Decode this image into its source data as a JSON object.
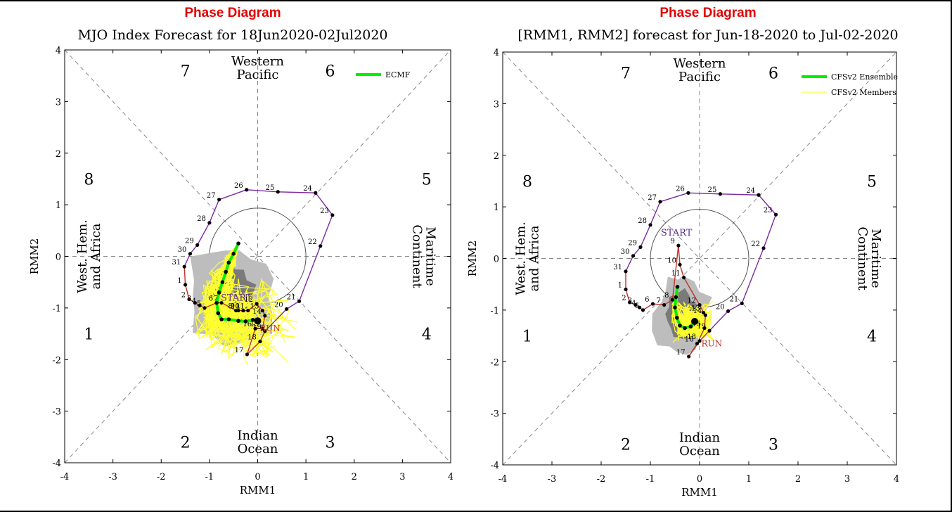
{
  "panels": [
    {
      "header": "Phase Diagram",
      "title": "MJO Index Forecast for 18Jun2020-02Jul2020",
      "xlabel": "RMM1",
      "ylabel": "RMM2",
      "region_labels": {
        "top": [
          "Western",
          "Pacific"
        ],
        "bottom": [
          "Indian",
          "Ocean"
        ],
        "left": [
          "West. Hem.",
          "and Africa"
        ],
        "right": [
          "Maritime",
          "Continent"
        ]
      },
      "phase_numbers": [
        "1",
        "2",
        "3",
        "4",
        "5",
        "6",
        "7",
        "8"
      ],
      "legend": [
        {
          "label": "ECMF",
          "color": "#00ee00"
        }
      ],
      "start_label": "START"
    },
    {
      "header": "Phase Diagram",
      "title": "[RMM1, RMM2] forecast for Jun-18-2020 to Jul-02-2020",
      "xlabel": "RMM1",
      "ylabel": "RMM2",
      "region_labels": {
        "top": [
          "Western",
          "Pacific"
        ],
        "bottom": [
          "Indian",
          "Ocean"
        ],
        "left": [
          "West. Hem.",
          "and Africa"
        ],
        "right": [
          "Maritime",
          "Continent"
        ]
      },
      "phase_numbers": [
        "1",
        "2",
        "3",
        "4",
        "5",
        "6",
        "7",
        "8"
      ],
      "legend": [
        {
          "label": "CFSv2 Ensemble",
          "color": "#00ee00"
        },
        {
          "label": "CFSv2 Members",
          "color": "#ffff40"
        }
      ],
      "start_label": "START"
    }
  ],
  "chart_data": [
    {
      "type": "scatter",
      "title": "MJO Index Forecast for 18Jun2020-02Jul2020",
      "xlabel": "RMM1",
      "ylabel": "RMM2",
      "xlim": [
        -4,
        4
      ],
      "ylim": [
        -4,
        4
      ],
      "xticks": [
        "-4",
        "-3",
        "-2",
        "-1",
        "0",
        "1",
        "2",
        "3",
        "4"
      ],
      "yticks": [
        "-4",
        "-3",
        "-2",
        "-1",
        "0",
        "1",
        "2",
        "3",
        "4"
      ],
      "colors": {
        "observed_path": "#7b2aa0",
        "observed_end": "#c0302a",
        "ensemble_mean": "#00ee00",
        "members": "#ffff30",
        "spread_outer": "#bdbdbd",
        "spread_inner": "#7a7a7a"
      },
      "series": [
        {
          "name": "Observed",
          "points": [
            {
              "label": "1",
              "x": -1.5,
              "y": -0.55
            },
            {
              "label": "2",
              "x": -1.42,
              "y": -0.83
            },
            {
              "label": "3",
              "x": -1.3,
              "y": -0.9
            },
            {
              "label": "4",
              "x": -1.2,
              "y": -0.95
            },
            {
              "label": "5",
              "x": -1.1,
              "y": -1.0
            },
            {
              "label": "6",
              "x": -0.85,
              "y": -0.9
            },
            {
              "label": "7",
              "x": -0.75,
              "y": -0.9
            },
            {
              "label": "8",
              "x": -0.45,
              "y": -1.05
            },
            {
              "label": "9",
              "x": -0.4,
              "y": -1.05
            },
            {
              "label": "10",
              "x": -0.3,
              "y": -1.05
            },
            {
              "label": "11",
              "x": -0.2,
              "y": -1.05
            },
            {
              "label": "12",
              "x": -0.02,
              "y": -0.92
            },
            {
              "label": "13",
              "x": 0.1,
              "y": -1.05
            },
            {
              "label": "14",
              "x": 0.15,
              "y": -1.15
            },
            {
              "label": "15",
              "x": 0.1,
              "y": -1.4
            },
            {
              "label": "16",
              "x": -0.05,
              "y": -1.4
            },
            {
              "label": "17",
              "x": -0.22,
              "y": -1.9
            },
            {
              "label": "18",
              "x": 0.05,
              "y": -1.65
            },
            {
              "label": "19",
              "x": 0.15,
              "y": -1.45
            },
            {
              "label": "20",
              "x": 0.6,
              "y": -1.02
            },
            {
              "label": "21",
              "x": 0.86,
              "y": -0.87
            },
            {
              "label": "22",
              "x": 1.3,
              "y": 0.2
            },
            {
              "label": "23",
              "x": 1.55,
              "y": 0.8
            },
            {
              "label": "24",
              "x": 1.2,
              "y": 1.23
            },
            {
              "label": "25",
              "x": 0.42,
              "y": 1.25
            },
            {
              "label": "26",
              "x": -0.23,
              "y": 1.29
            },
            {
              "label": "27",
              "x": -0.8,
              "y": 1.1
            },
            {
              "label": "28",
              "x": -1.0,
              "y": 0.65
            },
            {
              "label": "29",
              "x": -1.25,
              "y": 0.22
            },
            {
              "label": "30",
              "x": -1.4,
              "y": 0.05
            },
            {
              "label": "31",
              "x": -1.52,
              "y": -0.2
            }
          ]
        },
        {
          "name": "ECMF",
          "points": [
            {
              "x": -0.4,
              "y": 0.25
            },
            {
              "x": -0.5,
              "y": 0.05
            },
            {
              "x": -0.6,
              "y": -0.12
            },
            {
              "x": -0.66,
              "y": -0.3
            },
            {
              "x": -0.73,
              "y": -0.5
            },
            {
              "x": -0.8,
              "y": -0.7
            },
            {
              "x": -0.85,
              "y": -0.9
            },
            {
              "x": -0.82,
              "y": -1.1
            },
            {
              "x": -0.75,
              "y": -1.22
            },
            {
              "x": -0.6,
              "y": -1.22
            },
            {
              "x": -0.4,
              "y": -1.25
            },
            {
              "x": -0.25,
              "y": -1.26
            },
            {
              "x": -0.1,
              "y": -1.23
            },
            {
              "x": 0.0,
              "y": -1.25
            }
          ]
        }
      ],
      "annotations": [
        "START",
        "RUN"
      ]
    },
    {
      "type": "scatter",
      "title": "[RMM1, RMM2] forecast for Jun-18-2020 to Jul-02-2020",
      "xlabel": "RMM1",
      "ylabel": "RMM2",
      "xlim": [
        -4,
        4
      ],
      "ylim": [
        -4,
        4
      ],
      "xticks": [
        "-4",
        "-3",
        "-2",
        "-1",
        "0",
        "1",
        "2",
        "3",
        "4"
      ],
      "yticks": [
        "-4",
        "-3",
        "-2",
        "-1",
        "0",
        "1",
        "2",
        "3",
        "4"
      ],
      "colors": {
        "observed_path": "#7b2aa0",
        "observed_end": "#c0302a",
        "ensemble_mean": "#00ee00",
        "members": "#ffff30",
        "spread_outer": "#bdbdbd",
        "spread_inner": "#7a7a7a"
      },
      "series": [
        {
          "name": "Observed",
          "points": [
            {
              "label": "1",
              "x": -1.5,
              "y": -0.6
            },
            {
              "label": "2",
              "x": -1.42,
              "y": -0.85
            },
            {
              "label": "3",
              "x": -1.3,
              "y": -0.9
            },
            {
              "label": "4",
              "x": -1.22,
              "y": -0.95
            },
            {
              "label": "5",
              "x": -1.15,
              "y": -1.0
            },
            {
              "label": "6",
              "x": -0.95,
              "y": -0.88
            },
            {
              "label": "7",
              "x": -0.72,
              "y": -0.9
            },
            {
              "label": "8",
              "x": -0.55,
              "y": -0.8
            },
            {
              "label": "9",
              "x": -0.43,
              "y": 0.25
            },
            {
              "label": "10",
              "x": -0.4,
              "y": -0.12
            },
            {
              "label": "11",
              "x": -0.32,
              "y": -0.37
            },
            {
              "label": "12",
              "x": 0.0,
              "y": -0.9
            },
            {
              "label": "13",
              "x": 0.08,
              "y": -1.05
            },
            {
              "label": "14",
              "x": 0.12,
              "y": -1.1
            },
            {
              "label": "15",
              "x": 0.1,
              "y": -1.35
            },
            {
              "label": "16",
              "x": -0.05,
              "y": -1.65
            },
            {
              "label": "17",
              "x": -0.22,
              "y": -1.9
            },
            {
              "label": "18",
              "x": 0.0,
              "y": -1.6
            },
            {
              "label": "19",
              "x": 0.2,
              "y": -1.4
            },
            {
              "label": "20",
              "x": 0.58,
              "y": -1.02
            },
            {
              "label": "21",
              "x": 0.86,
              "y": -0.87
            },
            {
              "label": "22",
              "x": 1.3,
              "y": 0.2
            },
            {
              "label": "23",
              "x": 1.55,
              "y": 0.85
            },
            {
              "label": "24",
              "x": 1.2,
              "y": 1.23
            },
            {
              "label": "25",
              "x": 0.42,
              "y": 1.25
            },
            {
              "label": "26",
              "x": -0.23,
              "y": 1.27
            },
            {
              "label": "27",
              "x": -0.8,
              "y": 1.1
            },
            {
              "label": "28",
              "x": -1.0,
              "y": 0.65
            },
            {
              "label": "29",
              "x": -1.2,
              "y": 0.22
            },
            {
              "label": "30",
              "x": -1.35,
              "y": 0.05
            },
            {
              "label": "31",
              "x": -1.5,
              "y": -0.25
            }
          ]
        },
        {
          "name": "CFSv2 Ensemble",
          "points": [
            {
              "x": -0.45,
              "y": -0.55
            },
            {
              "x": -0.48,
              "y": -0.75
            },
            {
              "x": -0.5,
              "y": -0.95
            },
            {
              "x": -0.46,
              "y": -1.15
            },
            {
              "x": -0.4,
              "y": -1.3
            },
            {
              "x": -0.3,
              "y": -1.35
            },
            {
              "x": -0.18,
              "y": -1.32
            },
            {
              "x": -0.1,
              "y": -1.22
            }
          ]
        }
      ],
      "annotations": [
        "START",
        "RUN"
      ]
    }
  ]
}
